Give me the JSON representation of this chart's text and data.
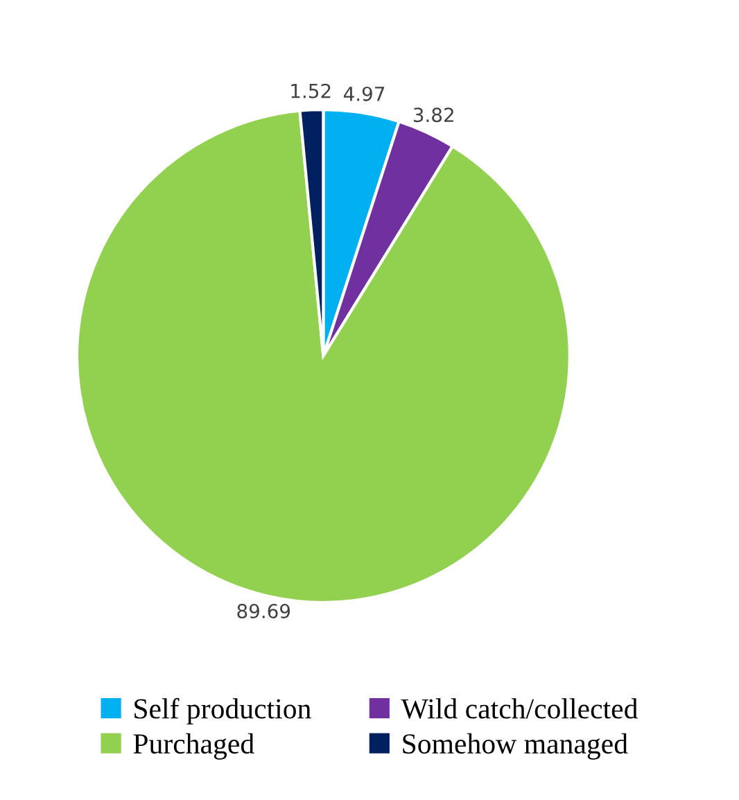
{
  "chart_data": {
    "type": "pie",
    "categories": [
      "Self production",
      "Wild catch/collected",
      "Purchaged",
      "Somehow managed"
    ],
    "values": [
      4.97,
      3.82,
      89.69,
      1.52
    ],
    "colors": [
      "#00b0f0",
      "#7030a0",
      "#92d050",
      "#002060"
    ],
    "data_labels": true,
    "legend": "bottom"
  }
}
